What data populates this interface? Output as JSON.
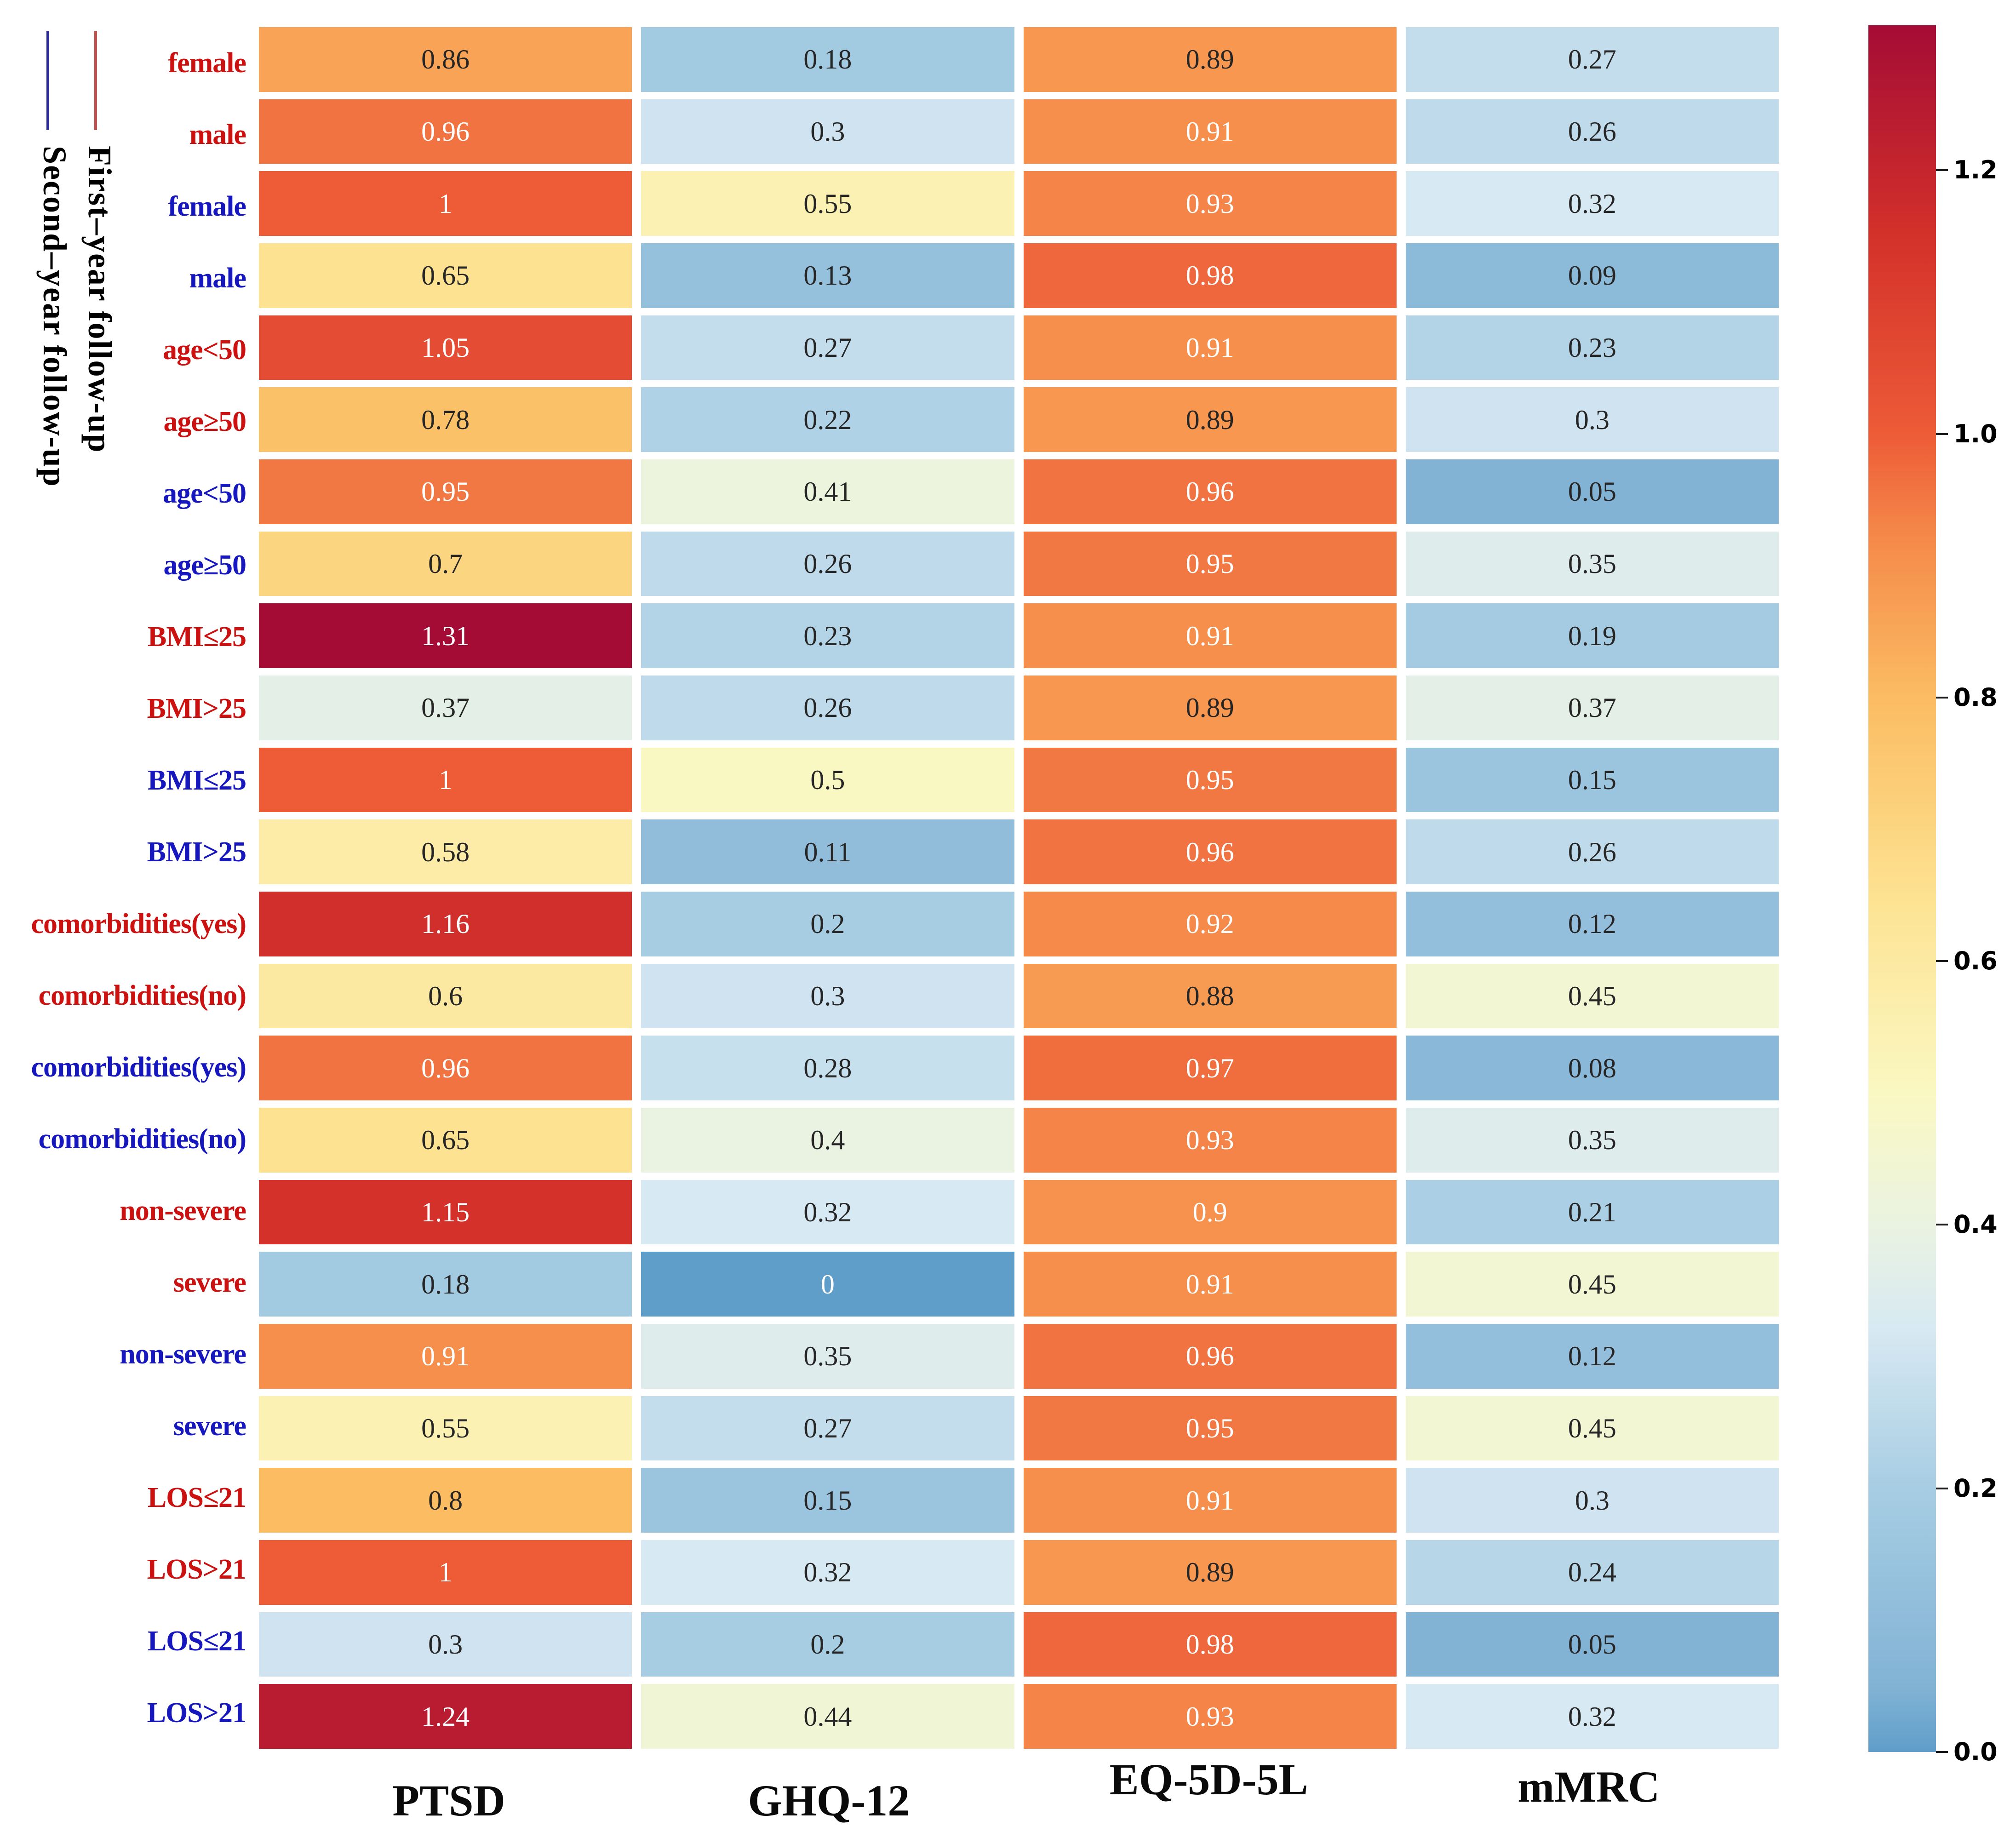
{
  "chart_data": {
    "type": "heatmap",
    "title": "",
    "xlabel": "",
    "ylabel": "",
    "columns": [
      "PTSD",
      "GHQ-12",
      "EQ-5D-5L",
      "mMRC"
    ],
    "rows": [
      {
        "label": "female",
        "group": "first-year",
        "values": [
          0.86,
          0.18,
          0.89,
          0.27
        ]
      },
      {
        "label": "male",
        "group": "first-year",
        "values": [
          0.96,
          0.3,
          0.91,
          0.26
        ]
      },
      {
        "label": "female",
        "group": "second-year",
        "values": [
          1,
          0.55,
          0.93,
          0.32
        ]
      },
      {
        "label": "male",
        "group": "second-year",
        "values": [
          0.65,
          0.13,
          0.98,
          0.09
        ]
      },
      {
        "label": "age<50",
        "group": "first-year",
        "values": [
          1.05,
          0.27,
          0.91,
          0.23
        ]
      },
      {
        "label": "age≥50",
        "group": "first-year",
        "values": [
          0.78,
          0.22,
          0.89,
          0.3
        ]
      },
      {
        "label": "age<50",
        "group": "second-year",
        "values": [
          0.95,
          0.41,
          0.96,
          0.05
        ]
      },
      {
        "label": "age≥50",
        "group": "second-year",
        "values": [
          0.7,
          0.26,
          0.95,
          0.35
        ]
      },
      {
        "label": "BMI≤25",
        "group": "first-year",
        "values": [
          1.31,
          0.23,
          0.91,
          0.19
        ]
      },
      {
        "label": "BMI>25",
        "group": "first-year",
        "values": [
          0.37,
          0.26,
          0.89,
          0.37
        ]
      },
      {
        "label": "BMI≤25",
        "group": "second-year",
        "values": [
          1,
          0.5,
          0.95,
          0.15
        ]
      },
      {
        "label": "BMI>25",
        "group": "second-year",
        "values": [
          0.58,
          0.11,
          0.96,
          0.26
        ]
      },
      {
        "label": "comorbidities(yes)",
        "group": "first-year",
        "values": [
          1.16,
          0.2,
          0.92,
          0.12
        ]
      },
      {
        "label": "comorbidities(no)",
        "group": "first-year",
        "values": [
          0.6,
          0.3,
          0.88,
          0.45
        ]
      },
      {
        "label": "comorbidities(yes)",
        "group": "second-year",
        "values": [
          0.96,
          0.28,
          0.97,
          0.08
        ]
      },
      {
        "label": "comorbidities(no)",
        "group": "second-year",
        "values": [
          0.65,
          0.4,
          0.93,
          0.35
        ]
      },
      {
        "label": "non-severe",
        "group": "first-year",
        "values": [
          1.15,
          0.32,
          0.9,
          0.21
        ]
      },
      {
        "label": "severe",
        "group": "first-year",
        "values": [
          0.18,
          0,
          0.91,
          0.45
        ]
      },
      {
        "label": "non-severe",
        "group": "second-year",
        "values": [
          0.91,
          0.35,
          0.96,
          0.12
        ]
      },
      {
        "label": "severe",
        "group": "second-year",
        "values": [
          0.55,
          0.27,
          0.95,
          0.45
        ]
      },
      {
        "label": "LOS≤21",
        "group": "first-year",
        "values": [
          0.8,
          0.15,
          0.91,
          0.3
        ]
      },
      {
        "label": "LOS>21",
        "group": "first-year",
        "values": [
          1,
          0.32,
          0.89,
          0.24
        ]
      },
      {
        "label": "LOS≤21",
        "group": "second-year",
        "values": [
          0.3,
          0.2,
          0.98,
          0.05
        ]
      },
      {
        "label": "LOS>21",
        "group": "second-year",
        "values": [
          1.24,
          0.44,
          0.93,
          0.32
        ]
      }
    ],
    "legend": [
      {
        "label": "First–year follow-up",
        "group": "first-year",
        "line_color": "#C0504D"
      },
      {
        "label": "Second–year follow-up",
        "group": "second-year",
        "line_color": "#2B2B9C"
      }
    ],
    "row_label_colors": {
      "first-year": "#CC1111",
      "second-year": "#1717BE"
    },
    "colorbar": {
      "vmin": 0,
      "vmax": 1.31,
      "tick_values": [
        0.0,
        0.2,
        0.4,
        0.6,
        0.8,
        1.0,
        1.2
      ],
      "tick_labels": [
        "0.0",
        "0.2",
        "0.4",
        "0.6",
        "0.8",
        "1.0",
        "1.2"
      ],
      "legend_position": "right"
    },
    "colormap_stops": [
      [
        0.0,
        "#5F9EC9"
      ],
      [
        0.05,
        "#82B3D5"
      ],
      [
        0.2,
        "#A7CDE3"
      ],
      [
        0.32,
        "#D7E9F2"
      ],
      [
        0.4,
        "#EAF3E1"
      ],
      [
        0.5,
        "#FAF8C2"
      ],
      [
        0.65,
        "#FDE291"
      ],
      [
        0.8,
        "#FBBC62"
      ],
      [
        0.92,
        "#F58A4A"
      ],
      [
        1.0,
        "#ED5B37"
      ],
      [
        1.15,
        "#D3312A"
      ],
      [
        1.31,
        "#A50C35"
      ]
    ],
    "annotation_colors": {
      "dark": "#262626",
      "light": "#FFFFFF",
      "luminance_threshold": 0.41
    },
    "grid_gaps": true
  }
}
